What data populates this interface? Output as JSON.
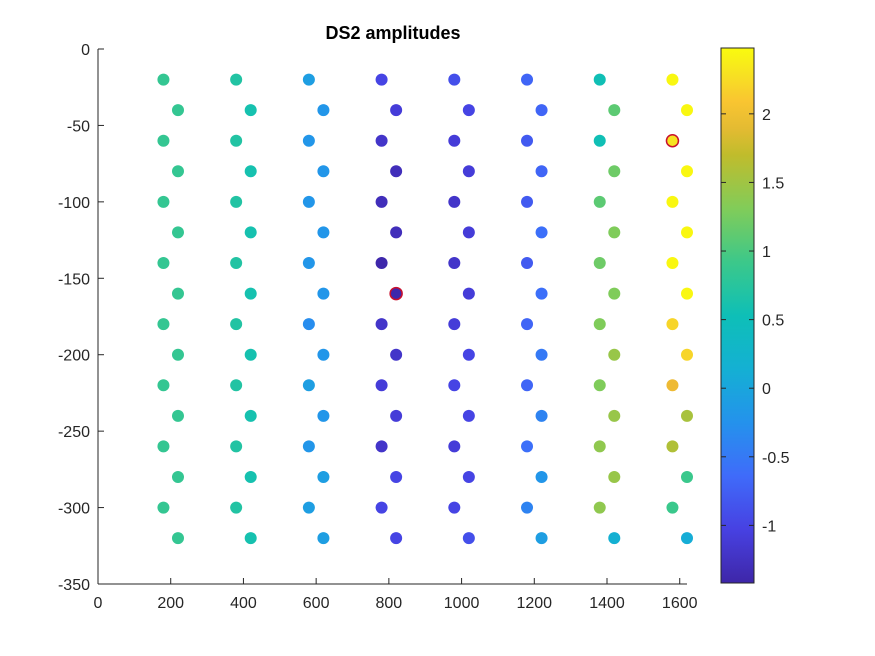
{
  "chart_data": {
    "type": "scatter",
    "title": "DS2 amplitudes",
    "xlabel": "",
    "ylabel": "",
    "xlim": [
      0,
      1620
    ],
    "ylim": [
      -350,
      0
    ],
    "xticks": [
      0,
      200,
      400,
      600,
      800,
      1000,
      1200,
      1400,
      1600
    ],
    "yticks": [
      0,
      -50,
      -100,
      -150,
      -200,
      -250,
      -300,
      -350
    ],
    "grid": false,
    "colormap": "parula",
    "colorbar": {
      "clim": [
        -1.42,
        2.48
      ],
      "ticks": [
        -1,
        -0.5,
        0,
        0.5,
        1,
        1.5,
        2
      ]
    },
    "columns_x": [
      180,
      220,
      380,
      420,
      580,
      620,
      780,
      820,
      980,
      1020,
      1180,
      1220,
      1380,
      1420,
      1580,
      1620
    ],
    "odd_y": [
      -20,
      -60,
      -100,
      -140,
      -180,
      -220,
      -260,
      -300
    ],
    "even_y": [
      -40,
      -80,
      -120,
      -160,
      -200,
      -240,
      -280,
      -320
    ],
    "values_by_column": [
      [
        0.85,
        0.85,
        0.85,
        0.85,
        0.85,
        0.85,
        0.85,
        0.85
      ],
      [
        0.85,
        0.85,
        0.85,
        0.85,
        0.85,
        0.85,
        0.85,
        0.85
      ],
      [
        0.7,
        0.7,
        0.7,
        0.7,
        0.7,
        0.7,
        0.7,
        0.7
      ],
      [
        0.6,
        0.6,
        0.6,
        0.6,
        0.6,
        0.6,
        0.6,
        0.6
      ],
      [
        -0.1,
        -0.2,
        -0.2,
        -0.2,
        -0.3,
        -0.1,
        -0.2,
        -0.1
      ],
      [
        -0.2,
        -0.2,
        -0.2,
        -0.2,
        -0.2,
        -0.2,
        -0.1,
        -0.1
      ],
      [
        -1.0,
        -1.2,
        -1.3,
        -1.4,
        -1.2,
        -1.1,
        -1.2,
        -1.0
      ],
      [
        -1.1,
        -1.3,
        -1.3,
        -1.4,
        -1.2,
        -1.1,
        -1.0,
        -1.0
      ],
      [
        -0.9,
        -1.1,
        -1.2,
        -1.2,
        -1.1,
        -1.0,
        -1.1,
        -1.0
      ],
      [
        -1.0,
        -1.1,
        -1.1,
        -1.1,
        -1.0,
        -1.0,
        -1.0,
        -0.9
      ],
      [
        -0.7,
        -0.8,
        -0.8,
        -0.8,
        -0.7,
        -0.7,
        -0.6,
        -0.4
      ],
      [
        -0.7,
        -0.7,
        -0.6,
        -0.6,
        -0.5,
        -0.4,
        -0.2,
        -0.1
      ],
      [
        0.55,
        0.55,
        1.1,
        1.2,
        1.3,
        1.3,
        1.4,
        1.4
      ],
      [
        1.1,
        1.2,
        1.3,
        1.3,
        1.45,
        1.45,
        1.45,
        0.15
      ],
      [
        2.45,
        2.3,
        2.45,
        2.45,
        2.2,
        1.95,
        1.6,
        0.9
      ],
      [
        2.45,
        2.45,
        2.45,
        2.45,
        2.2,
        1.55,
        0.9,
        0.1
      ]
    ],
    "highlighted_points": [
      {
        "x": 1580,
        "y": -60
      },
      {
        "x": 820,
        "y": -160
      }
    ]
  }
}
